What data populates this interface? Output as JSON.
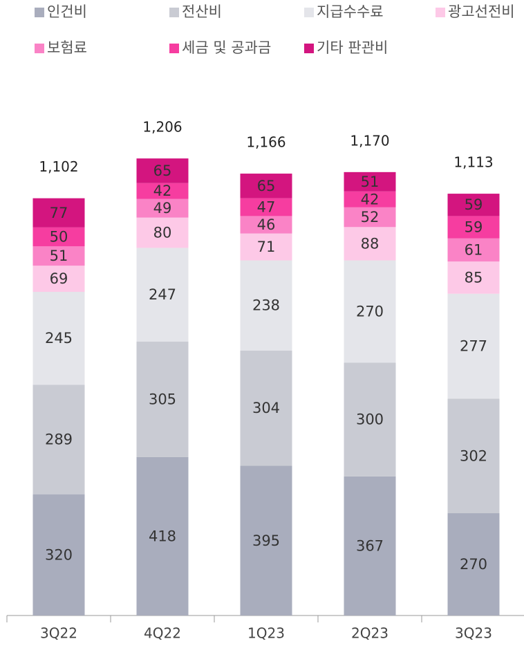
{
  "chart_data": {
    "type": "stacked_bar",
    "categories": [
      "3Q22",
      "4Q22",
      "1Q23",
      "2Q23",
      "3Q23"
    ],
    "series": [
      {
        "name": "인건비",
        "color": "#a9adbd",
        "values": [
          320,
          418,
          395,
          367,
          270
        ]
      },
      {
        "name": "전산비",
        "color": "#c9cbd3",
        "values": [
          289,
          305,
          304,
          300,
          302
        ]
      },
      {
        "name": "지급수수료",
        "color": "#e4e5ea",
        "values": [
          245,
          247,
          238,
          270,
          277
        ]
      },
      {
        "name": "광고선전비",
        "color": "#fdc9e7",
        "values": [
          69,
          80,
          71,
          88,
          85
        ]
      },
      {
        "name": "보험료",
        "color": "#fa83c6",
        "values": [
          51,
          49,
          46,
          52,
          61
        ]
      },
      {
        "name": "세금 및 공과금",
        "color": "#f63da0",
        "values": [
          50,
          42,
          47,
          42,
          59
        ]
      },
      {
        "name": "기타 판관비",
        "color": "#d3157f",
        "values": [
          77,
          65,
          65,
          51,
          59
        ]
      }
    ],
    "totals": [
      1102,
      1206,
      1166,
      1170,
      1113
    ],
    "total_labels": [
      "1,102",
      "1,206",
      "1,166",
      "1,170",
      "1,113"
    ]
  }
}
